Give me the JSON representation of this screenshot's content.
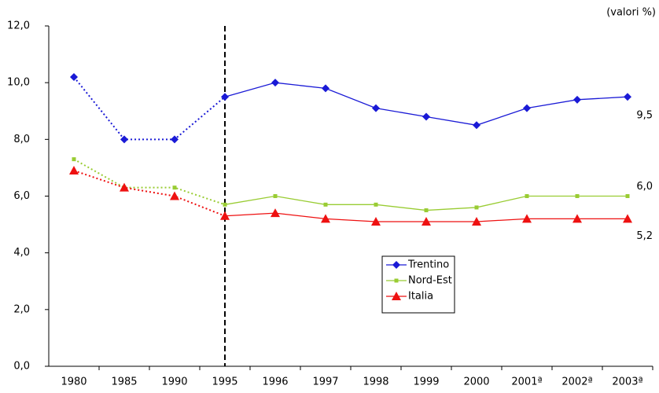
{
  "chart_data": {
    "type": "line",
    "annotation": "(valori %)",
    "categories": [
      "1980",
      "1985",
      "1990",
      "1995",
      "1996",
      "1997",
      "1998",
      "1999",
      "2000",
      "2001ª",
      "2002ª",
      "2003ª"
    ],
    "vline": "1995",
    "series": [
      {
        "name": "Trentino",
        "color": "#1a1ad6",
        "marker": "diamond",
        "values": [
          10.2,
          8.0,
          8.0,
          9.5,
          10.0,
          9.8,
          9.1,
          8.8,
          8.5,
          9.1,
          9.4,
          9.5
        ],
        "value_labels": [
          null,
          null,
          null,
          null,
          null,
          null,
          null,
          null,
          null,
          null,
          null,
          "9,5"
        ]
      },
      {
        "name": "Nord-Est",
        "color": "#99cc33",
        "marker": "square",
        "values": [
          7.3,
          6.3,
          6.3,
          5.7,
          6.0,
          5.7,
          5.7,
          5.5,
          5.6,
          6.0,
          6.0,
          6.0
        ],
        "value_labels": [
          null,
          null,
          null,
          null,
          null,
          null,
          null,
          null,
          null,
          null,
          null,
          "6,0"
        ]
      },
      {
        "name": "Italia",
        "color": "#ee1111",
        "marker": "triangle",
        "values": [
          6.9,
          6.3,
          6.0,
          5.3,
          5.4,
          5.2,
          5.1,
          5.1,
          5.1,
          5.2,
          5.2,
          5.2
        ],
        "value_labels": [
          null,
          null,
          null,
          null,
          null,
          null,
          null,
          null,
          null,
          null,
          null,
          "5,2"
        ]
      }
    ],
    "ylim": [
      0,
      12
    ],
    "yticks": [
      {
        "value": 0,
        "label": "0,0"
      },
      {
        "value": 2,
        "label": "2,0"
      },
      {
        "value": 4,
        "label": "4,0"
      },
      {
        "value": 6,
        "label": "6,0"
      },
      {
        "value": 8,
        "label": "8,0"
      },
      {
        "value": 10,
        "label": "10,0"
      },
      {
        "value": 12,
        "label": "12,0"
      }
    ],
    "grid": false
  }
}
